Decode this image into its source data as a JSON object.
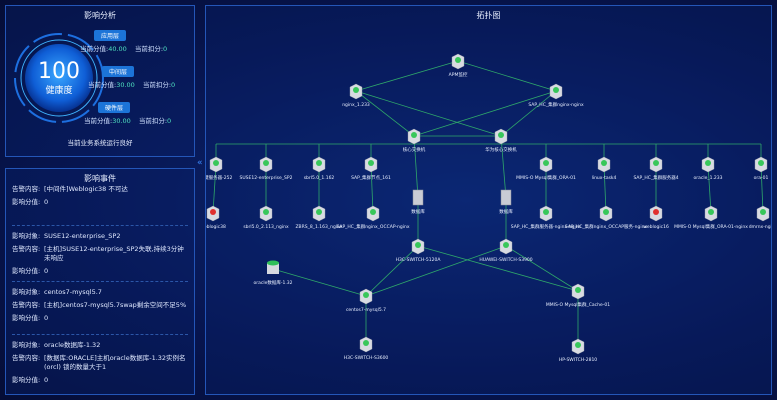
{
  "impact_analysis": {
    "title": "影响分析",
    "health": {
      "score": "100",
      "label": "健康度"
    },
    "layers": [
      {
        "name": "应用层",
        "score_label": "当前分值:",
        "score": "40.00",
        "deduct_label": "当前扣分:",
        "deduct": "0"
      },
      {
        "name": "中间层",
        "score_label": "当前分值:",
        "score": "30.00",
        "deduct_label": "当前扣分:",
        "deduct": "0"
      },
      {
        "name": "硬件层",
        "score_label": "当前分值:",
        "score": "30.00",
        "deduct_label": "当前扣分:",
        "deduct": "0"
      }
    ],
    "status": "当前业务系统运行良好"
  },
  "impact_events": {
    "title": "影响事件",
    "events": [
      {
        "rows": [
          {
            "label": "告警内容:",
            "value": "[中间件]Weblogic38 不可达"
          },
          {
            "label": "影响分值:",
            "value": "0"
          }
        ]
      },
      {
        "rows": [
          {
            "label": "影响对象:",
            "value": "SUSE12-enterprise_SP2"
          },
          {
            "label": "告警内容:",
            "value": "[主机]SUSE12-enterprise_SP2失联,持续3分钟未响应"
          },
          {
            "label": "影响分值:",
            "value": "0"
          }
        ]
      },
      {
        "rows": [
          {
            "label": "影响对象:",
            "value": "centos7-mysql5.7"
          },
          {
            "label": "告警内容:",
            "value": "[主机]centos7-mysql5.7swap剩余空间不足5%"
          },
          {
            "label": "影响分值:",
            "value": "0"
          }
        ]
      },
      {
        "rows": [
          {
            "label": "影响对象:",
            "value": "oracle数据库-1.32"
          },
          {
            "label": "告警内容:",
            "value": "[数据库:ORACLE]主机oracle数据库-1.32实例名(orcl) 锁的数量大于1"
          },
          {
            "label": "影响分值:",
            "value": "0"
          }
        ]
      }
    ]
  },
  "topology": {
    "title": "拓扑图",
    "nodes": [
      {
        "label": "APM监控"
      },
      {
        "label": "nginx_1.233"
      },
      {
        "label": "SAP_HC_集群nginx-nginx"
      },
      {
        "label": "核心交换机"
      },
      {
        "label": "华为核心交换机"
      },
      {
        "label": "关键服务器-252"
      },
      {
        "label": "SUSE12-enterprise_SP2"
      },
      {
        "label": "sbrl5.0_1.162"
      },
      {
        "label": "SAP_集群节点_161"
      },
      {
        "label": "MMIS-O Mysql集群_ORA-01"
      },
      {
        "label": "linux-task4"
      },
      {
        "label": "SAP_HC_集群服务器4"
      },
      {
        "label": "oracle_1.233"
      },
      {
        "label": "ora-01"
      },
      {
        "label": "weblogic38"
      },
      {
        "label": "sbrl5.0_2.113_nginx"
      },
      {
        "label": "ZBRS_8_1.163_nginx"
      },
      {
        "label": "SAP_HC_集群nginx_OCCAP-nginx"
      },
      {
        "label": "数据库"
      },
      {
        "label": "数据库"
      },
      {
        "label": "SAP_HC_集群服务器-nginx-nginx"
      },
      {
        "label": "SAP_HC_集群nginx_OCCAP服务-nginx"
      },
      {
        "label": "weblogic16"
      },
      {
        "label": "MMIS-O Mysql集群_ORA-01-nginx"
      },
      {
        "label": "dmrnx-nginx"
      },
      {
        "label": "H3C-SWITCH-5120A"
      },
      {
        "label": "HUAWEI-SWITCH-S3900"
      },
      {
        "label": "oracle数据库-1.32"
      },
      {
        "label": "centos7-mysql5.7"
      },
      {
        "label": "MMIS-O Mysql集群_Cache-01"
      },
      {
        "label": "H3C-SWITCH-S3600"
      },
      {
        "label": "HP-SWITCH-2810"
      }
    ]
  }
}
